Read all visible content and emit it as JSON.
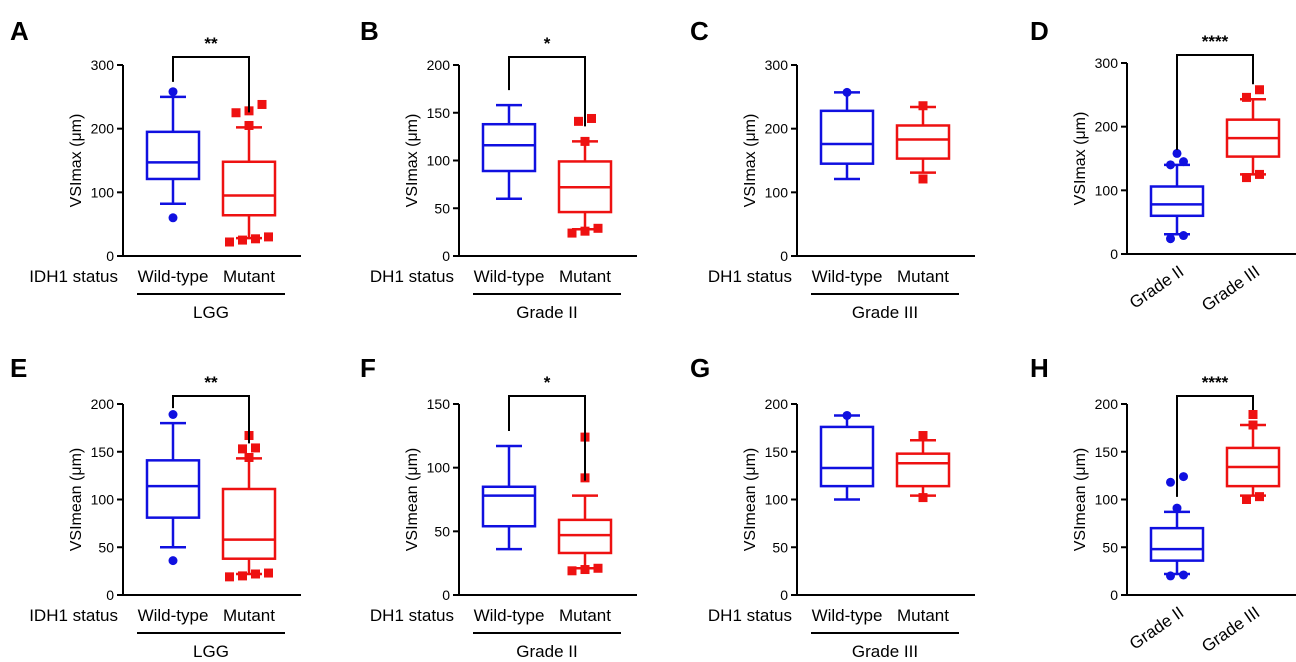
{
  "colors": {
    "wild_type": "#1010e0",
    "mutant": "#ee1111",
    "axis": "#000000"
  },
  "chart_data": [
    {
      "type": "box",
      "panel": "A",
      "ylabel": "VSImax (μm)",
      "ylim": [
        0,
        300
      ],
      "yticks": [
        "0",
        "100",
        "200",
        "300"
      ],
      "status_label": "IDH1 status",
      "group_label": "LGG",
      "categories": [
        "Wild-type",
        "Mutant"
      ],
      "significance": "**",
      "boxes": [
        {
          "category": "Wild-type",
          "color": "#1010e0",
          "whisker_low": 82,
          "q1": 121,
          "median": 147,
          "q3": 195,
          "whisker_high": 250,
          "outliers": [
            60,
            258
          ]
        },
        {
          "category": "Mutant",
          "color": "#ee1111",
          "whisker_low": 28,
          "q1": 64,
          "median": 95,
          "q3": 148,
          "whisker_high": 202,
          "outliers": [
            22,
            25,
            27,
            30,
            205,
            225,
            228,
            238
          ]
        }
      ]
    },
    {
      "type": "box",
      "panel": "B",
      "ylabel": "VSImax (μm)",
      "ylim": [
        0,
        200
      ],
      "yticks": [
        "0",
        "50",
        "100",
        "150",
        "200"
      ],
      "status_label": "DH1 status",
      "group_label": "Grade II",
      "categories": [
        "Wild-type",
        "Mutant"
      ],
      "significance": "*",
      "boxes": [
        {
          "category": "Wild-type",
          "color": "#1010e0",
          "whisker_low": 60,
          "q1": 89,
          "median": 116,
          "q3": 138,
          "whisker_high": 158,
          "outliers": []
        },
        {
          "category": "Mutant",
          "color": "#ee1111",
          "whisker_low": 28,
          "q1": 46,
          "median": 72,
          "q3": 99,
          "whisker_high": 120,
          "outliers": [
            24,
            26,
            29,
            120,
            141,
            144
          ]
        }
      ]
    },
    {
      "type": "box",
      "panel": "C",
      "ylabel": "VSImax (μm)",
      "ylim": [
        0,
        300
      ],
      "yticks": [
        "0",
        "100",
        "200",
        "300"
      ],
      "status_label": "DH1 status",
      "group_label": "Grade III",
      "categories": [
        "Wild-type",
        "Mutant"
      ],
      "significance": "",
      "boxes": [
        {
          "category": "Wild-type",
          "color": "#1010e0",
          "whisker_low": 121,
          "q1": 145,
          "median": 176,
          "q3": 228,
          "whisker_high": 257,
          "outliers": [
            257
          ]
        },
        {
          "category": "Mutant",
          "color": "#ee1111",
          "whisker_low": 131,
          "q1": 153,
          "median": 183,
          "q3": 205,
          "whisker_high": 234,
          "outliers": [
            121,
            236
          ]
        }
      ]
    },
    {
      "type": "box",
      "panel": "D",
      "ylabel": "VSImax (μm)",
      "ylim": [
        0,
        300
      ],
      "yticks": [
        "0",
        "100",
        "200",
        "300"
      ],
      "status_label": "",
      "group_label": "",
      "categories": [
        "Grade II",
        "Grade III"
      ],
      "rotated_categories": true,
      "significance": "****",
      "boxes": [
        {
          "category": "Grade II",
          "color": "#1010e0",
          "whisker_low": 31,
          "q1": 60,
          "median": 78,
          "q3": 106,
          "whisker_high": 140,
          "outliers": [
            24,
            29,
            140,
            145,
            158
          ]
        },
        {
          "category": "Grade III",
          "color": "#ee1111",
          "whisker_low": 125,
          "q1": 153,
          "median": 182,
          "q3": 211,
          "whisker_high": 243,
          "outliers": [
            120,
            125,
            246,
            258
          ]
        }
      ]
    },
    {
      "type": "box",
      "panel": "E",
      "ylabel": "VSImean (μm)",
      "ylim": [
        0,
        200
      ],
      "yticks": [
        "0",
        "50",
        "100",
        "150",
        "200"
      ],
      "status_label": "IDH1 status",
      "group_label": "LGG",
      "categories": [
        "Wild-type",
        "Mutant"
      ],
      "significance": "**",
      "boxes": [
        {
          "category": "Wild-type",
          "color": "#1010e0",
          "whisker_low": 50,
          "q1": 81,
          "median": 114,
          "q3": 141,
          "whisker_high": 180,
          "outliers": [
            36,
            189
          ]
        },
        {
          "category": "Mutant",
          "color": "#ee1111",
          "whisker_low": 22,
          "q1": 38,
          "median": 58,
          "q3": 111,
          "whisker_high": 143,
          "outliers": [
            19,
            20,
            22,
            23,
            144,
            153,
            154,
            167
          ]
        }
      ]
    },
    {
      "type": "box",
      "panel": "F",
      "ylabel": "VSImean (μm)",
      "ylim": [
        0,
        150
      ],
      "yticks": [
        "0",
        "50",
        "100",
        "150"
      ],
      "status_label": "DH1 status",
      "group_label": "Grade II",
      "categories": [
        "Wild-type",
        "Mutant"
      ],
      "significance": "*",
      "boxes": [
        {
          "category": "Wild-type",
          "color": "#1010e0",
          "whisker_low": 36,
          "q1": 54,
          "median": 78,
          "q3": 85,
          "whisker_high": 117,
          "outliers": []
        },
        {
          "category": "Mutant",
          "color": "#ee1111",
          "whisker_low": 21,
          "q1": 33,
          "median": 47,
          "q3": 59,
          "whisker_high": 78,
          "outliers": [
            19,
            20,
            21,
            92,
            124
          ]
        }
      ]
    },
    {
      "type": "box",
      "panel": "G",
      "ylabel": "VSImean (μm)",
      "ylim": [
        0,
        200
      ],
      "yticks": [
        "0",
        "50",
        "100",
        "150",
        "200"
      ],
      "status_label": "DH1 status",
      "group_label": "Grade III",
      "categories": [
        "Wild-type",
        "Mutant"
      ],
      "significance": "",
      "boxes": [
        {
          "category": "Wild-type",
          "color": "#1010e0",
          "whisker_low": 100,
          "q1": 114,
          "median": 133,
          "q3": 176,
          "whisker_high": 188,
          "outliers": [
            188
          ]
        },
        {
          "category": "Mutant",
          "color": "#ee1111",
          "whisker_low": 104,
          "q1": 114,
          "median": 138,
          "q3": 148,
          "whisker_high": 162,
          "outliers": [
            102,
            167
          ]
        }
      ]
    },
    {
      "type": "box",
      "panel": "H",
      "ylabel": "VSImean (μm)",
      "ylim": [
        0,
        200
      ],
      "yticks": [
        "0",
        "50",
        "100",
        "150",
        "200"
      ],
      "status_label": "",
      "group_label": "",
      "categories": [
        "Grade II",
        "Grade III"
      ],
      "rotated_categories": true,
      "significance": "****",
      "boxes": [
        {
          "category": "Grade II",
          "color": "#1010e0",
          "whisker_low": 22,
          "q1": 36,
          "median": 48,
          "q3": 70,
          "whisker_high": 87,
          "outliers": [
            20,
            21,
            91,
            118,
            124
          ]
        },
        {
          "category": "Grade III",
          "color": "#ee1111",
          "whisker_low": 104,
          "q1": 114,
          "median": 134,
          "q3": 154,
          "whisker_high": 178,
          "outliers": [
            100,
            103,
            178,
            189
          ]
        }
      ]
    }
  ]
}
